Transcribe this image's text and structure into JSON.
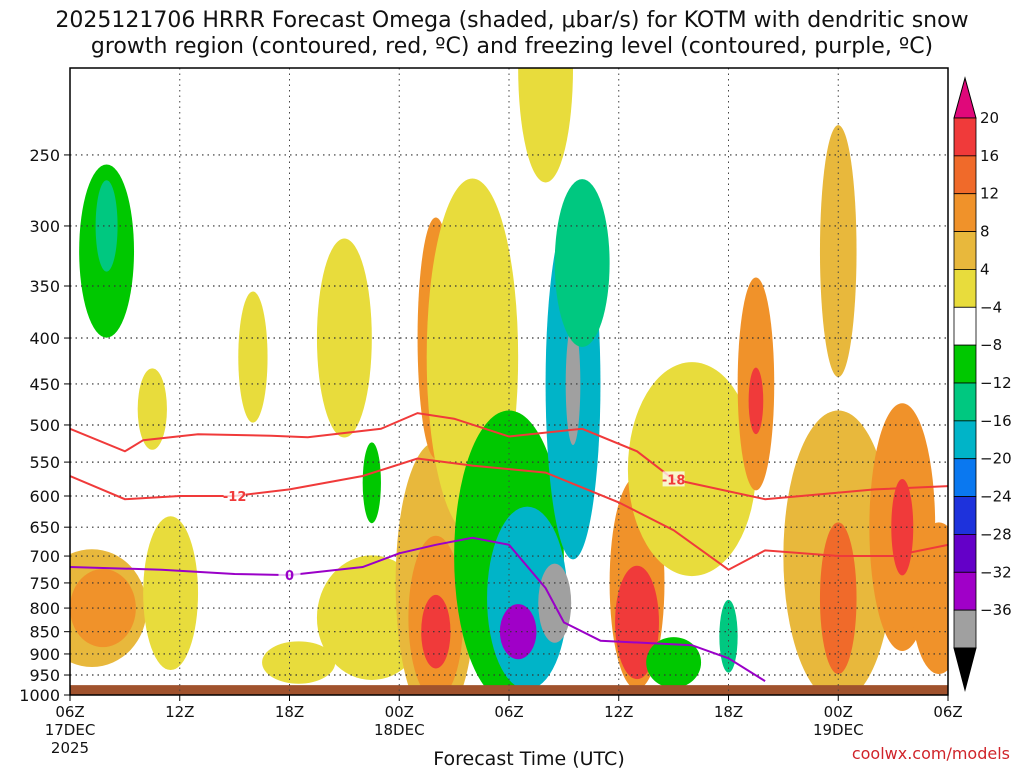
{
  "header": {
    "title_line1": "2025121706 HRRR Forecast Omega (shaded, μbar/s) for KOTM with dendritic snow",
    "title_line2": "growth region (contoured, red, ºC) and freezing level (contoured, purple, ºC)"
  },
  "footer": {
    "credit": "coolwx.com/models"
  },
  "chart_data": {
    "type": "heatmap",
    "xlabel": "Forecast Time (UTC)",
    "x_ticks": [
      {
        "hour": 0,
        "label": "06Z",
        "sub1": "17DEC",
        "sub2": "2025"
      },
      {
        "hour": 6,
        "label": "12Z",
        "sub1": "",
        "sub2": ""
      },
      {
        "hour": 12,
        "label": "18Z",
        "sub1": "",
        "sub2": ""
      },
      {
        "hour": 18,
        "label": "00Z",
        "sub1": "18DEC",
        "sub2": ""
      },
      {
        "hour": 24,
        "label": "06Z",
        "sub1": "",
        "sub2": ""
      },
      {
        "hour": 30,
        "label": "12Z",
        "sub1": "",
        "sub2": ""
      },
      {
        "hour": 36,
        "label": "18Z",
        "sub1": "",
        "sub2": ""
      },
      {
        "hour": 42,
        "label": "00Z",
        "sub1": "19DEC",
        "sub2": ""
      },
      {
        "hour": 48,
        "label": "06Z",
        "sub1": "",
        "sub2": ""
      }
    ],
    "y_ticks": [
      250,
      300,
      350,
      400,
      450,
      500,
      550,
      600,
      650,
      700,
      750,
      800,
      850,
      900,
      950,
      1000
    ],
    "xlim": [
      0,
      48
    ],
    "ylim": [
      200,
      1000
    ],
    "y_scale": "log-pressure",
    "grid": true,
    "colorbar": {
      "labels": [
        "20",
        "16",
        "12",
        "8",
        "4",
        "−4",
        "−8",
        "−12",
        "−16",
        "−20",
        "−24",
        "−28",
        "−32",
        "−36"
      ],
      "colors": [
        "#e0087a",
        "#f03a3a",
        "#f06a2a",
        "#f0922a",
        "#e8b83c",
        "#e8dc3c",
        "#ffffff",
        "#00c800",
        "#00c880",
        "#00b4c8",
        "#0a78f0",
        "#1e32dc",
        "#6400c8",
        "#a000c8",
        "#a0a0a0",
        "#000000"
      ]
    },
    "omega_blobs": [
      {
        "x": 2.0,
        "p": 320,
        "rx": 1.5,
        "rp": 70,
        "v": -6
      },
      {
        "x": 2.0,
        "p": 300,
        "rx": 0.6,
        "rp": 35,
        "v": -10
      },
      {
        "x": 1.2,
        "p": 800,
        "rx": 3.0,
        "rp": 120,
        "v": 6
      },
      {
        "x": 1.8,
        "p": 800,
        "rx": 1.8,
        "rp": 80,
        "v": 11
      },
      {
        "x": 5.5,
        "p": 770,
        "rx": 1.5,
        "rp": 150,
        "v": 5
      },
      {
        "x": 4.5,
        "p": 480,
        "rx": 0.8,
        "rp": 50,
        "v": 5
      },
      {
        "x": 10.0,
        "p": 420,
        "rx": 0.8,
        "rp": 70,
        "v": 5
      },
      {
        "x": 12.5,
        "p": 920,
        "rx": 2.0,
        "rp": 50,
        "v": 5
      },
      {
        "x": 15.0,
        "p": 400,
        "rx": 1.5,
        "rp": 100,
        "v": 5
      },
      {
        "x": 16.5,
        "p": 580,
        "rx": 0.5,
        "rp": 60,
        "v": -6
      },
      {
        "x": 16.5,
        "p": 820,
        "rx": 3.0,
        "rp": 130,
        "v": 5
      },
      {
        "x": 20.0,
        "p": 750,
        "rx": 2.2,
        "rp": 260,
        "v": 6
      },
      {
        "x": 20.0,
        "p": 820,
        "rx": 1.5,
        "rp": 170,
        "v": 10
      },
      {
        "x": 20.0,
        "p": 850,
        "rx": 0.8,
        "rp": 80,
        "v": 16
      },
      {
        "x": 20.0,
        "p": 400,
        "rx": 1.0,
        "rp": 120,
        "v": 8
      },
      {
        "x": 22.0,
        "p": 420,
        "rx": 2.5,
        "rp": 180,
        "v": 5
      },
      {
        "x": 24.0,
        "p": 700,
        "rx": 3.0,
        "rp": 250,
        "v": -6
      },
      {
        "x": 25.0,
        "p": 780,
        "rx": 2.2,
        "rp": 180,
        "v": -14
      },
      {
        "x": 24.5,
        "p": 850,
        "rx": 1.0,
        "rp": 60,
        "v": -30
      },
      {
        "x": 26.5,
        "p": 790,
        "rx": 0.9,
        "rp": 80,
        "v": -34
      },
      {
        "x": 27.5,
        "p": 450,
        "rx": 1.5,
        "rp": 190,
        "v": -12
      },
      {
        "x": 27.5,
        "p": 450,
        "rx": 0.4,
        "rp": 70,
        "v": -33
      },
      {
        "x": 28.0,
        "p": 330,
        "rx": 1.5,
        "rp": 70,
        "v": -8
      },
      {
        "x": 26.0,
        "p": 200,
        "rx": 1.5,
        "rp": 70,
        "v": 5
      },
      {
        "x": 31.0,
        "p": 750,
        "rx": 1.5,
        "rp": 200,
        "v": 8
      },
      {
        "x": 31.0,
        "p": 830,
        "rx": 1.2,
        "rp": 120,
        "v": 18
      },
      {
        "x": 34.0,
        "p": 560,
        "rx": 3.5,
        "rp": 150,
        "v": 5
      },
      {
        "x": 33.0,
        "p": 920,
        "rx": 1.5,
        "rp": 60,
        "v": -6
      },
      {
        "x": 36.0,
        "p": 860,
        "rx": 0.5,
        "rp": 80,
        "v": -10
      },
      {
        "x": 37.5,
        "p": 450,
        "rx": 1.0,
        "rp": 120,
        "v": 8
      },
      {
        "x": 37.5,
        "p": 470,
        "rx": 0.4,
        "rp": 40,
        "v": 16
      },
      {
        "x": 42.0,
        "p": 700,
        "rx": 3.0,
        "rp": 250,
        "v": 6
      },
      {
        "x": 42.0,
        "p": 780,
        "rx": 1.0,
        "rp": 150,
        "v": 15
      },
      {
        "x": 42.0,
        "p": 320,
        "rx": 1.0,
        "rp": 100,
        "v": 6
      },
      {
        "x": 45.5,
        "p": 650,
        "rx": 1.8,
        "rp": 200,
        "v": 8
      },
      {
        "x": 45.5,
        "p": 650,
        "rx": 0.6,
        "rp": 80,
        "v": 18
      },
      {
        "x": 47.5,
        "p": 780,
        "rx": 1.5,
        "rp": 150,
        "v": 8
      }
    ],
    "snow_growth_top": {
      "label": "-18",
      "points": [
        [
          0,
          505
        ],
        [
          3,
          535
        ],
        [
          4,
          520
        ],
        [
          7,
          512
        ],
        [
          11,
          514
        ],
        [
          13,
          516
        ],
        [
          17,
          505
        ],
        [
          19,
          485
        ],
        [
          21,
          492
        ],
        [
          24,
          515
        ],
        [
          28,
          505
        ],
        [
          31,
          535
        ],
        [
          33,
          575
        ],
        [
          38,
          605
        ],
        [
          44,
          590
        ],
        [
          48,
          585
        ]
      ]
    },
    "snow_growth_bottom": {
      "label": "-12",
      "points": [
        [
          0,
          570
        ],
        [
          3,
          605
        ],
        [
          6,
          600
        ],
        [
          9,
          600
        ],
        [
          12,
          590
        ],
        [
          16,
          570
        ],
        [
          19,
          545
        ],
        [
          22,
          555
        ],
        [
          26,
          565
        ],
        [
          30,
          610
        ],
        [
          33,
          655
        ],
        [
          36,
          725
        ],
        [
          38,
          690
        ],
        [
          42,
          700
        ],
        [
          45,
          700
        ],
        [
          48,
          680
        ]
      ]
    },
    "freezing_level": {
      "label": "0",
      "points": [
        [
          0,
          720
        ],
        [
          5,
          725
        ],
        [
          9,
          733
        ],
        [
          12,
          735
        ],
        [
          16,
          720
        ],
        [
          18,
          695
        ],
        [
          20,
          680
        ],
        [
          22,
          668
        ],
        [
          24,
          680
        ],
        [
          26,
          760
        ],
        [
          27,
          830
        ],
        [
          29,
          870
        ],
        [
          34,
          880
        ],
        [
          36,
          910
        ],
        [
          38,
          965
        ]
      ]
    }
  }
}
